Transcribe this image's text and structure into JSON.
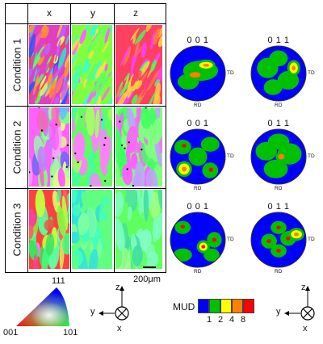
{
  "figure": {
    "columns": [
      "x",
      "y",
      "z"
    ],
    "rows": [
      "Condition 1",
      "Condition 2",
      "Condition 3"
    ],
    "scale_bar": "200μm"
  },
  "pole_figures": {
    "titles": [
      "0 0 1",
      "0 1 1"
    ],
    "td": "TD",
    "rd": "RD"
  },
  "ipf_legend": {
    "top": "111",
    "left": "001",
    "right": "101"
  },
  "mud_legend": {
    "label": "MUD",
    "ticks": [
      "1",
      "2",
      "4",
      "8"
    ],
    "colors": [
      "#0000ff",
      "#00c000",
      "#ffff00",
      "#ff8000",
      "#ff0000"
    ]
  },
  "axes": {
    "micro": {
      "up": "z",
      "left": "y",
      "out": "x"
    },
    "pole": {
      "up": "z",
      "left": "y",
      "out": "x"
    }
  }
}
